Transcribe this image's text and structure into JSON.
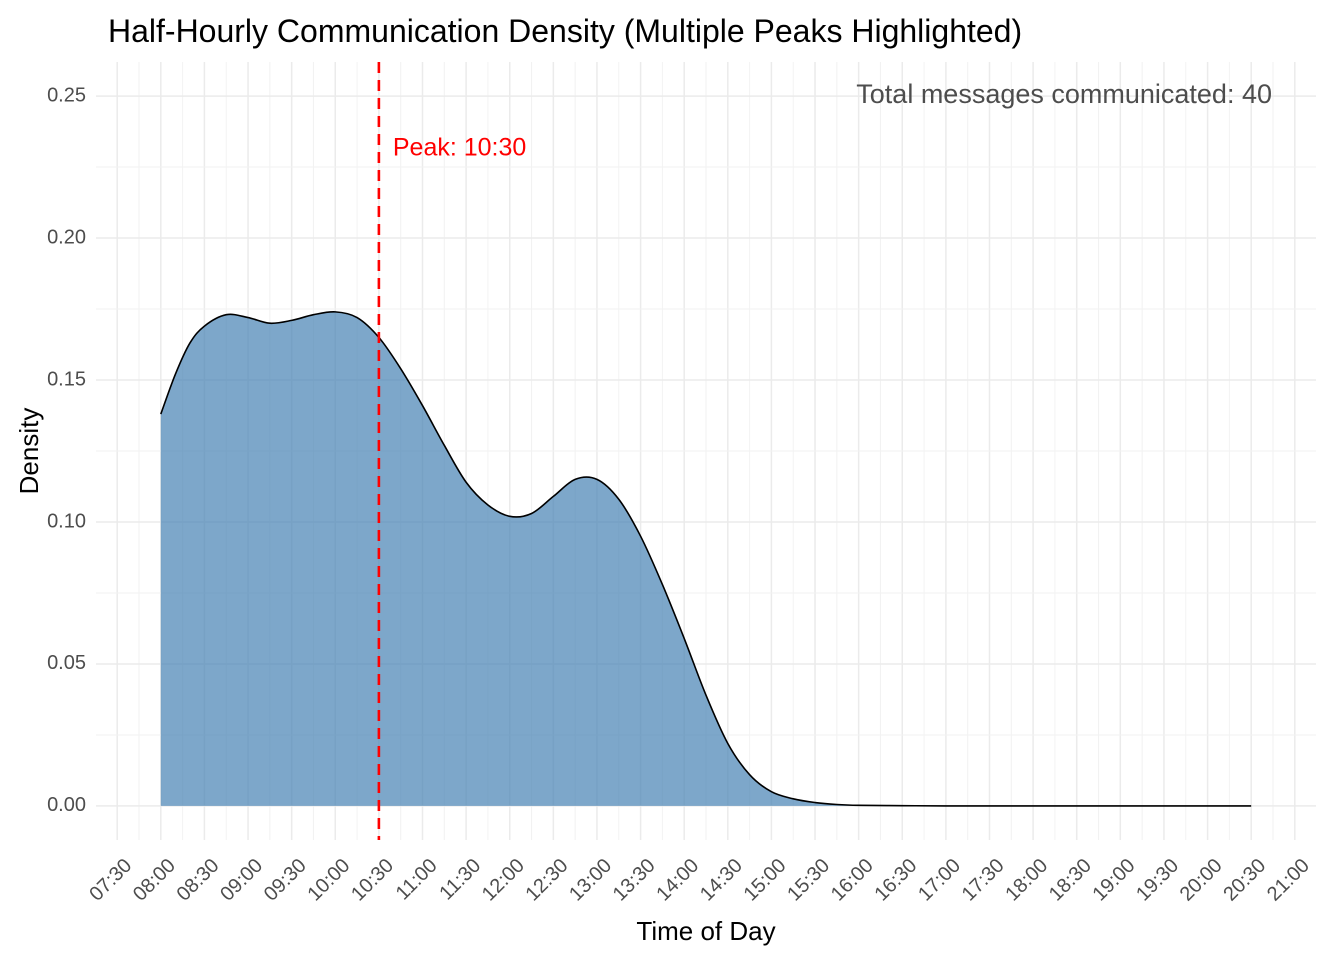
{
  "chart_data": {
    "type": "area",
    "title": "Half-Hourly Communication Density (Multiple Peaks Highlighted)",
    "xlabel": "Time of Day",
    "ylabel": "Density",
    "x_ticks": [
      "07:30",
      "08:00",
      "08:30",
      "09:00",
      "09:30",
      "10:00",
      "10:30",
      "11:00",
      "11:30",
      "12:00",
      "12:30",
      "13:00",
      "13:30",
      "14:00",
      "14:30",
      "15:00",
      "15:30",
      "16:00",
      "16:30",
      "17:00",
      "17:30",
      "18:00",
      "18:30",
      "19:00",
      "19:30",
      "20:00",
      "20:30",
      "21:00"
    ],
    "xlim": [
      "07:30",
      "21:00"
    ],
    "y_ticks": [
      "0.00",
      "0.05",
      "0.10",
      "0.15",
      "0.20",
      "0.25"
    ],
    "ylim": [
      -0.012,
      0.262
    ],
    "grid": true,
    "fill_color": "#4682B4",
    "line_color": "#000000",
    "peak_line_color": "#FF0000",
    "series": [
      {
        "x": [
          "08:00",
          "08:10",
          "08:20",
          "08:30",
          "08:45",
          "09:00",
          "09:15",
          "09:30",
          "09:45",
          "10:00",
          "10:15",
          "10:30",
          "10:45",
          "11:00",
          "11:15",
          "11:30",
          "11:45",
          "12:00",
          "12:15",
          "12:30",
          "12:45",
          "13:00",
          "13:15",
          "13:30",
          "13:45",
          "14:00",
          "14:15",
          "14:30",
          "14:45",
          "15:00",
          "15:15",
          "15:30",
          "15:45",
          "16:00",
          "16:30",
          "17:00",
          "18:00",
          "19:00",
          "20:00",
          "20:30"
        ],
        "y": [
          0.138,
          0.152,
          0.163,
          0.169,
          0.173,
          0.172,
          0.17,
          0.171,
          0.173,
          0.174,
          0.172,
          0.165,
          0.154,
          0.141,
          0.127,
          0.114,
          0.106,
          0.102,
          0.103,
          0.109,
          0.115,
          0.115,
          0.108,
          0.095,
          0.078,
          0.059,
          0.039,
          0.022,
          0.011,
          0.005,
          0.0025,
          0.0012,
          0.0005,
          0.0002,
          0.0001,
          0.0,
          0.0,
          0.0,
          0.0,
          0.0
        ]
      }
    ],
    "annotations": {
      "peak_x": "10:30",
      "peak_label": "Peak: 10:30",
      "total_label": "Total messages communicated: 40"
    }
  }
}
